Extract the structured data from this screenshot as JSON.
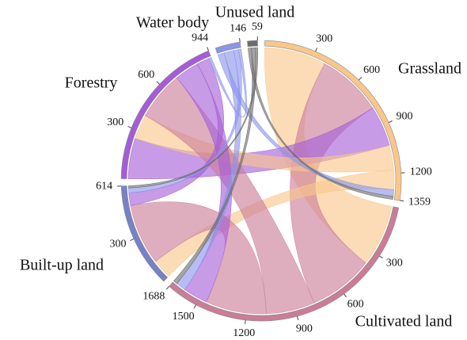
{
  "chart_data": {
    "type": "chord",
    "sectors": [
      {
        "name": "Grassland",
        "value": 1359,
        "color": "#f8c78a",
        "ticks": [
          300,
          600,
          900,
          1200,
          1359
        ]
      },
      {
        "name": "Cultivated land",
        "value": 1688,
        "color": "#c97d97",
        "ticks": [
          300,
          600,
          900,
          1200,
          1500,
          1688
        ]
      },
      {
        "name": "Built-up land",
        "value": 614,
        "color": "#7782c6",
        "ticks": [
          300,
          614
        ]
      },
      {
        "name": "Forestry",
        "value": 944,
        "color": "#a45dd6",
        "ticks": [
          300,
          600,
          944
        ]
      },
      {
        "name": "Water body",
        "value": 146,
        "color": "#8b95ea",
        "ticks": [
          146
        ]
      },
      {
        "name": "Unused land",
        "value": 59,
        "color": "#6c6c6c",
        "ticks": [
          59
        ]
      }
    ],
    "flows": [
      {
        "from": 0,
        "to": 1,
        "value": 380
      },
      {
        "from": 1,
        "to": 0,
        "value": 399
      },
      {
        "from": 3,
        "to": 0,
        "value": 250
      },
      {
        "from": 0,
        "to": 3,
        "value": 150
      },
      {
        "from": 0,
        "to": 2,
        "value": 120
      },
      {
        "from": 1,
        "to": 3,
        "value": 300
      },
      {
        "from": 1,
        "to": 2,
        "value": 373
      },
      {
        "from": 3,
        "to": 1,
        "value": 151
      },
      {
        "from": 3,
        "to": 2,
        "value": 77
      },
      {
        "from": 4,
        "to": 0,
        "value": 40
      },
      {
        "from": 4,
        "to": 1,
        "value": 60
      },
      {
        "from": 4,
        "to": 2,
        "value": 30
      },
      {
        "from": 4,
        "to": 3,
        "value": 16
      },
      {
        "from": 5,
        "to": 0,
        "value": 20
      },
      {
        "from": 5,
        "to": 1,
        "value": 25
      },
      {
        "from": 5,
        "to": 2,
        "value": 14
      }
    ]
  }
}
